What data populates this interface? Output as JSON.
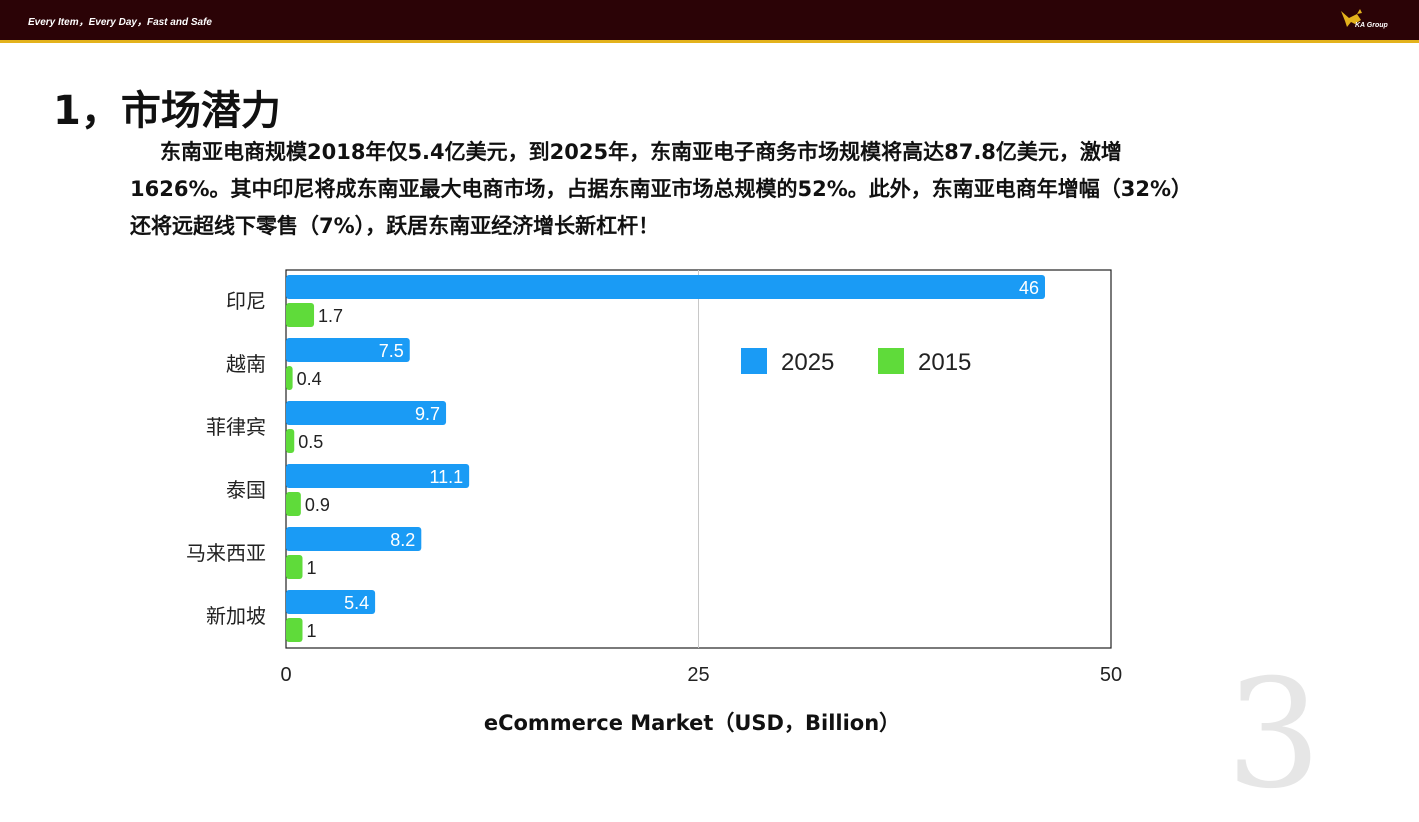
{
  "header": {
    "slogan": "Every Item，Every Day，Fast and Safe",
    "logo_text": "KA Group"
  },
  "slide": {
    "title": "1，市场潜力",
    "paragraph": "东南亚电商规模2018年仅5.4亿美元，到2025年，东南亚电子商务市场规模将高达87.8亿美元，激增1626%。其中印尼将成东南亚最大电商市场，占据东南亚市场总规模的52%。此外，东南亚电商年增幅（32%）还将远超线下零售（7%），跃居东南亚经济增长新杠杆！",
    "page_number": "3"
  },
  "chart_data": {
    "type": "bar",
    "orientation": "horizontal",
    "categories": [
      "印尼",
      "越南",
      "菲律宾",
      "泰国",
      "马来西亚",
      "新加坡"
    ],
    "series": [
      {
        "name": "2025",
        "color": "#1a9bf5",
        "values": [
          46,
          7.5,
          9.7,
          11.1,
          8.2,
          5.4
        ],
        "labels": [
          "46",
          "7.5",
          "9.7",
          "11.1",
          "8.2",
          "5.4"
        ]
      },
      {
        "name": "2015",
        "color": "#5fdb3a",
        "values": [
          1.7,
          0.4,
          0.5,
          0.9,
          1,
          1
        ],
        "labels": [
          "1.7",
          "0.4",
          "0.5",
          "0.9",
          "1",
          "1"
        ]
      }
    ],
    "xlim": [
      0,
      50
    ],
    "xticks": [
      "0",
      "25",
      "50"
    ],
    "xlabel": "eCommerce Market（USD，Billion）",
    "grid": true,
    "legend_position": "right-upper"
  }
}
